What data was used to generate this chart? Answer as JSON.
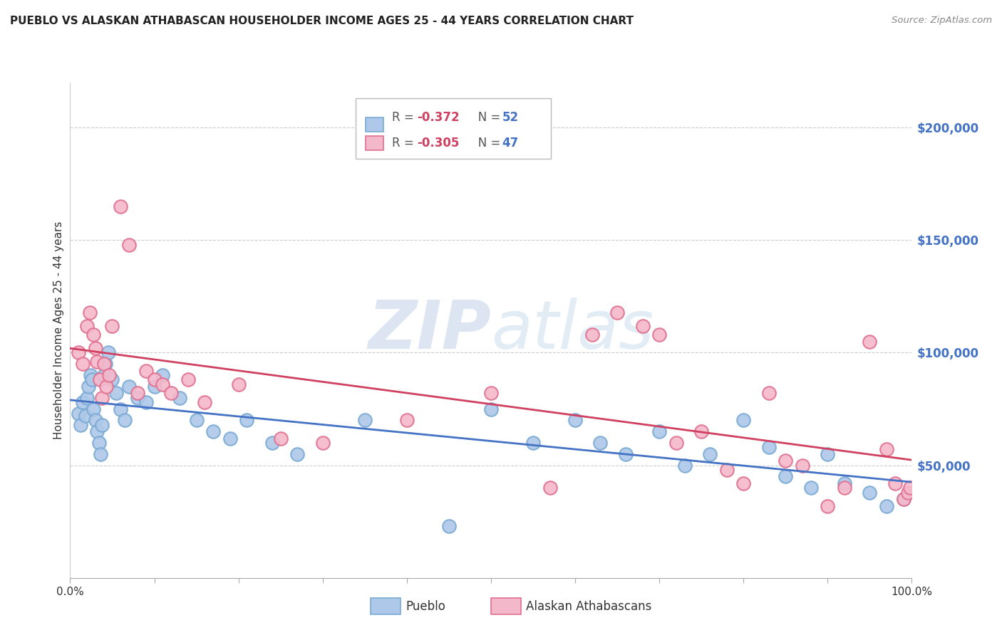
{
  "title": "PUEBLO VS ALASKAN ATHABASCAN HOUSEHOLDER INCOME AGES 25 - 44 YEARS CORRELATION CHART",
  "source": "Source: ZipAtlas.com",
  "ylabel": "Householder Income Ages 25 - 44 years",
  "watermark_zip": "ZIP",
  "watermark_atlas": "atlas",
  "pueblo_color": "#adc8e8",
  "pueblo_edge": "#7aaad4",
  "athabascan_color": "#f4b8cb",
  "athabascan_edge": "#e07090",
  "trend_blue": "#4472c4",
  "trend_pink": "#d04060",
  "legend_label1": "Pueblo",
  "legend_label2": "Alaskan Athabascans",
  "ytick_labels": [
    "$200,000",
    "$150,000",
    "$100,000",
    "$50,000"
  ],
  "ytick_values": [
    200000,
    150000,
    100000,
    50000
  ],
  "ymin": 0,
  "ymax": 220000,
  "xmin": 0.0,
  "xmax": 100.0,
  "pueblo_x": [
    1.0,
    1.2,
    1.5,
    1.8,
    2.0,
    2.2,
    2.4,
    2.6,
    2.8,
    3.0,
    3.2,
    3.4,
    3.6,
    3.8,
    4.0,
    4.2,
    4.5,
    5.0,
    5.5,
    6.0,
    6.5,
    7.0,
    8.0,
    9.0,
    10.0,
    11.0,
    13.0,
    15.0,
    17.0,
    19.0,
    21.0,
    24.0,
    27.0,
    35.0,
    45.0,
    50.0,
    55.0,
    60.0,
    63.0,
    66.0,
    70.0,
    73.0,
    76.0,
    80.0,
    83.0,
    85.0,
    88.0,
    90.0,
    92.0,
    95.0,
    97.0,
    99.0
  ],
  "pueblo_y": [
    73000,
    68000,
    78000,
    72000,
    80000,
    85000,
    90000,
    88000,
    75000,
    70000,
    65000,
    60000,
    55000,
    68000,
    90000,
    95000,
    100000,
    88000,
    82000,
    75000,
    70000,
    85000,
    80000,
    78000,
    85000,
    90000,
    80000,
    70000,
    65000,
    62000,
    70000,
    60000,
    55000,
    70000,
    23000,
    75000,
    60000,
    70000,
    60000,
    55000,
    65000,
    50000,
    55000,
    70000,
    58000,
    45000,
    40000,
    55000,
    42000,
    38000,
    32000,
    35000
  ],
  "athabascan_x": [
    1.0,
    1.5,
    2.0,
    2.3,
    2.8,
    3.0,
    3.2,
    3.5,
    3.8,
    4.0,
    4.3,
    4.6,
    5.0,
    6.0,
    7.0,
    8.0,
    9.0,
    10.0,
    11.0,
    12.0,
    14.0,
    16.0,
    20.0,
    25.0,
    30.0,
    40.0,
    50.0,
    57.0,
    62.0,
    65.0,
    68.0,
    70.0,
    72.0,
    75.0,
    78.0,
    80.0,
    83.0,
    85.0,
    87.0,
    90.0,
    92.0,
    95.0,
    97.0,
    98.0,
    99.0,
    99.5,
    99.8
  ],
  "athabascan_y": [
    100000,
    95000,
    112000,
    118000,
    108000,
    102000,
    96000,
    88000,
    80000,
    95000,
    85000,
    90000,
    112000,
    165000,
    148000,
    82000,
    92000,
    88000,
    86000,
    82000,
    88000,
    78000,
    86000,
    62000,
    60000,
    70000,
    82000,
    40000,
    108000,
    118000,
    112000,
    108000,
    60000,
    65000,
    48000,
    42000,
    82000,
    52000,
    50000,
    32000,
    40000,
    105000,
    57000,
    42000,
    35000,
    38000,
    40000
  ]
}
